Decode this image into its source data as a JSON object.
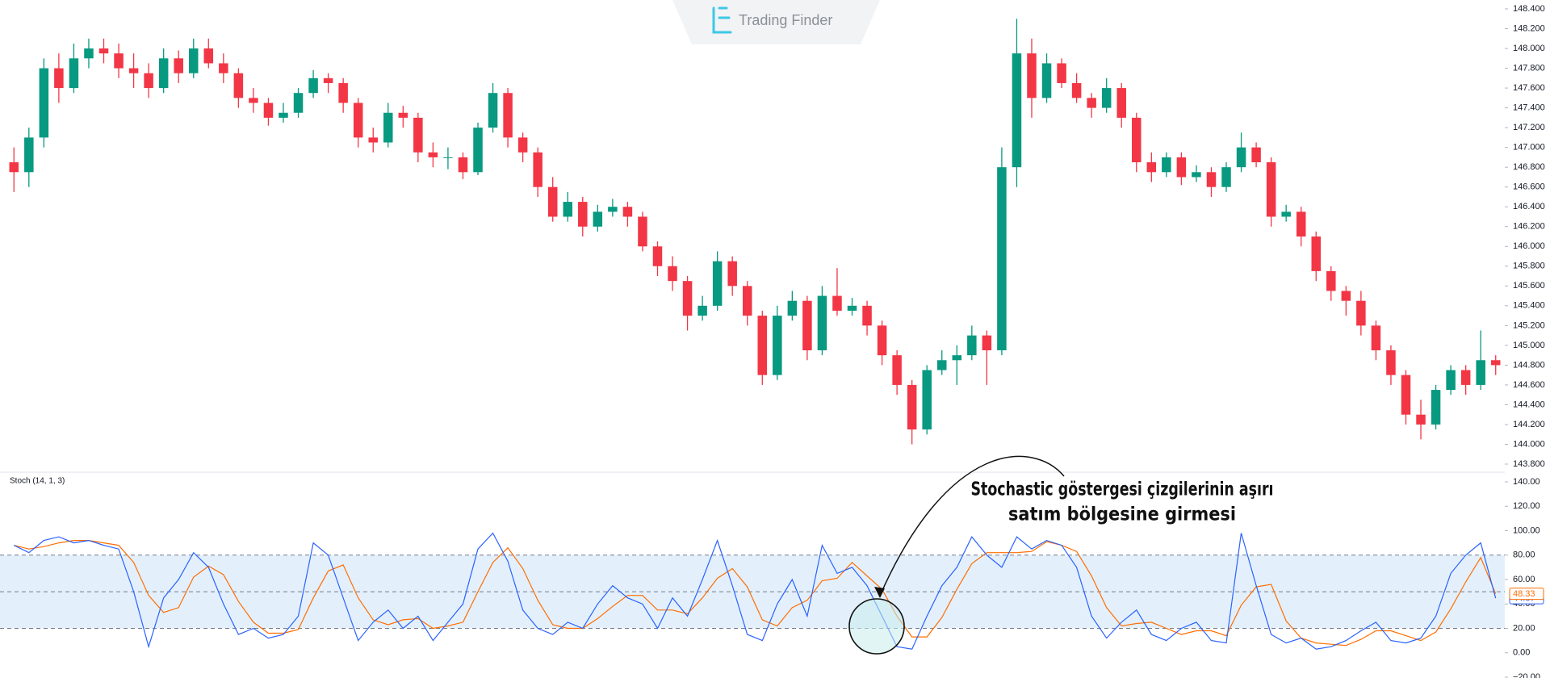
{
  "watermark": "Trading Finder",
  "chart_data": [
    {
      "type": "candlestick",
      "up_color": "#089981",
      "down_color": "#f23645",
      "ylim": [
        143.8,
        148.4
      ],
      "yticks": [
        {
          "value": 148.4,
          "label": "148.400"
        },
        {
          "value": 148.2,
          "label": "148.200"
        },
        {
          "value": 148.0,
          "label": "148.000"
        },
        {
          "value": 147.8,
          "label": "147.800"
        },
        {
          "value": 147.6,
          "label": "147.600"
        },
        {
          "value": 147.4,
          "label": "147.400"
        },
        {
          "value": 147.2,
          "label": "147.200"
        },
        {
          "value": 147.0,
          "label": "147.000"
        },
        {
          "value": 146.8,
          "label": "146.800"
        },
        {
          "value": 146.6,
          "label": "146.600"
        },
        {
          "value": 146.4,
          "label": "146.400"
        },
        {
          "value": 146.2,
          "label": "146.200"
        },
        {
          "value": 146.0,
          "label": "146.000"
        },
        {
          "value": 145.8,
          "label": "145.800"
        },
        {
          "value": 145.6,
          "label": "145.600"
        },
        {
          "value": 145.4,
          "label": "145.400"
        },
        {
          "value": 145.2,
          "label": "145.200"
        },
        {
          "value": 145.0,
          "label": "145.000"
        },
        {
          "value": 144.8,
          "label": "144.800"
        },
        {
          "value": 144.6,
          "label": "144.600"
        },
        {
          "value": 144.4,
          "label": "144.400"
        },
        {
          "value": 144.2,
          "label": "144.200"
        },
        {
          "value": 144.0,
          "label": "144.000"
        },
        {
          "value": 143.8,
          "label": "143.800"
        }
      ],
      "ohlc": [
        [
          146.85,
          147.0,
          146.55,
          146.75
        ],
        [
          146.75,
          147.2,
          146.6,
          147.1
        ],
        [
          147.1,
          147.9,
          147.0,
          147.8
        ],
        [
          147.8,
          147.95,
          147.45,
          147.6
        ],
        [
          147.6,
          148.05,
          147.55,
          147.9
        ],
        [
          147.9,
          148.1,
          147.8,
          148.0
        ],
        [
          148.0,
          148.1,
          147.85,
          147.95
        ],
        [
          147.95,
          148.05,
          147.7,
          147.8
        ],
        [
          147.8,
          147.95,
          147.6,
          147.75
        ],
        [
          147.75,
          147.85,
          147.5,
          147.6
        ],
        [
          147.6,
          148.0,
          147.55,
          147.9
        ],
        [
          147.9,
          147.98,
          147.65,
          147.75
        ],
        [
          147.75,
          148.1,
          147.7,
          148.0
        ],
        [
          148.0,
          148.1,
          147.8,
          147.85
        ],
        [
          147.85,
          147.95,
          147.65,
          147.75
        ],
        [
          147.75,
          147.8,
          147.4,
          147.5
        ],
        [
          147.5,
          147.6,
          147.35,
          147.45
        ],
        [
          147.45,
          147.5,
          147.22,
          147.3
        ],
        [
          147.3,
          147.45,
          147.25,
          147.35
        ],
        [
          147.35,
          147.6,
          147.3,
          147.55
        ],
        [
          147.55,
          147.78,
          147.5,
          147.7
        ],
        [
          147.7,
          147.75,
          147.55,
          147.65
        ],
        [
          147.65,
          147.7,
          147.35,
          147.45
        ],
        [
          147.45,
          147.5,
          147.0,
          147.1
        ],
        [
          147.1,
          147.2,
          146.95,
          147.05
        ],
        [
          147.05,
          147.45,
          147.0,
          147.35
        ],
        [
          147.35,
          147.42,
          147.2,
          147.3
        ],
        [
          147.3,
          147.35,
          146.85,
          146.95
        ],
        [
          146.95,
          147.05,
          146.8,
          146.9
        ],
        [
          146.9,
          147.0,
          146.78,
          146.9
        ],
        [
          146.9,
          146.95,
          146.68,
          146.75
        ],
        [
          146.75,
          147.25,
          146.72,
          147.2
        ],
        [
          147.2,
          147.65,
          147.15,
          147.55
        ],
        [
          147.55,
          147.6,
          147.0,
          147.1
        ],
        [
          147.1,
          147.15,
          146.85,
          146.95
        ],
        [
          146.95,
          147.0,
          146.5,
          146.6
        ],
        [
          146.6,
          146.7,
          146.25,
          146.3
        ],
        [
          146.3,
          146.55,
          146.25,
          146.45
        ],
        [
          146.45,
          146.5,
          146.1,
          146.2
        ],
        [
          146.2,
          146.42,
          146.15,
          146.35
        ],
        [
          146.35,
          146.48,
          146.3,
          146.4
        ],
        [
          146.4,
          146.45,
          146.2,
          146.3
        ],
        [
          146.3,
          146.35,
          145.95,
          146.0
        ],
        [
          146.0,
          146.05,
          145.7,
          145.8
        ],
        [
          145.8,
          145.9,
          145.55,
          145.65
        ],
        [
          145.65,
          145.7,
          145.15,
          145.3
        ],
        [
          145.3,
          145.5,
          145.25,
          145.4
        ],
        [
          145.4,
          145.95,
          145.35,
          145.85
        ],
        [
          145.85,
          145.9,
          145.5,
          145.6
        ],
        [
          145.6,
          145.65,
          145.2,
          145.3
        ],
        [
          145.3,
          145.35,
          144.6,
          144.7
        ],
        [
          144.7,
          145.4,
          144.65,
          145.3
        ],
        [
          145.3,
          145.55,
          145.25,
          145.45
        ],
        [
          145.45,
          145.5,
          144.85,
          144.95
        ],
        [
          144.95,
          145.6,
          144.9,
          145.5
        ],
        [
          145.5,
          145.78,
          145.3,
          145.35
        ],
        [
          145.35,
          145.48,
          145.3,
          145.4
        ],
        [
          145.4,
          145.45,
          145.1,
          145.2
        ],
        [
          145.2,
          145.25,
          144.8,
          144.9
        ],
        [
          144.9,
          144.95,
          144.5,
          144.6
        ],
        [
          144.6,
          144.65,
          144.0,
          144.15
        ],
        [
          144.15,
          144.8,
          144.1,
          144.75
        ],
        [
          144.75,
          144.95,
          144.7,
          144.85
        ],
        [
          144.85,
          145.0,
          144.6,
          144.9
        ],
        [
          144.9,
          145.2,
          144.85,
          145.1
        ],
        [
          145.1,
          145.15,
          144.6,
          144.95
        ],
        [
          144.95,
          147.0,
          144.9,
          146.8
        ],
        [
          146.8,
          148.3,
          146.6,
          147.95
        ],
        [
          147.95,
          148.1,
          147.3,
          147.5
        ],
        [
          147.5,
          147.95,
          147.45,
          147.85
        ],
        [
          147.85,
          147.9,
          147.6,
          147.65
        ],
        [
          147.65,
          147.75,
          147.45,
          147.5
        ],
        [
          147.5,
          147.55,
          147.3,
          147.4
        ],
        [
          147.4,
          147.7,
          147.35,
          147.6
        ],
        [
          147.6,
          147.65,
          147.2,
          147.3
        ],
        [
          147.3,
          147.35,
          146.75,
          146.85
        ],
        [
          146.85,
          146.95,
          146.65,
          146.75
        ],
        [
          146.75,
          146.95,
          146.7,
          146.9
        ],
        [
          146.9,
          146.95,
          146.62,
          146.7
        ],
        [
          146.7,
          146.82,
          146.65,
          146.75
        ],
        [
          146.75,
          146.8,
          146.5,
          146.6
        ],
        [
          146.6,
          146.85,
          146.55,
          146.8
        ],
        [
          146.8,
          147.15,
          146.75,
          147.0
        ],
        [
          147.0,
          147.05,
          146.8,
          146.85
        ],
        [
          146.85,
          146.9,
          146.2,
          146.3
        ],
        [
          146.3,
          146.42,
          146.25,
          146.35
        ],
        [
          146.35,
          146.4,
          146.0,
          146.1
        ],
        [
          146.1,
          146.15,
          145.65,
          145.75
        ],
        [
          145.75,
          145.8,
          145.45,
          145.55
        ],
        [
          145.55,
          145.6,
          145.3,
          145.45
        ],
        [
          145.45,
          145.55,
          145.1,
          145.2
        ],
        [
          145.2,
          145.25,
          144.85,
          144.95
        ],
        [
          144.95,
          145.0,
          144.6,
          144.7
        ],
        [
          144.7,
          144.75,
          144.2,
          144.3
        ],
        [
          144.3,
          144.45,
          144.05,
          144.2
        ],
        [
          144.2,
          144.6,
          144.15,
          144.55
        ],
        [
          144.55,
          144.8,
          144.5,
          144.75
        ],
        [
          144.75,
          144.8,
          144.5,
          144.6
        ],
        [
          144.6,
          145.15,
          144.55,
          144.85
        ],
        [
          144.85,
          144.9,
          144.7,
          144.8
        ]
      ]
    },
    {
      "type": "line",
      "title": "Stoch (14, 1, 3)",
      "ylim": [
        -20,
        140
      ],
      "yticks": [
        {
          "value": 140,
          "label": "140.00"
        },
        {
          "value": 120,
          "label": "120.00"
        },
        {
          "value": 100,
          "label": "100.00"
        },
        {
          "value": 80,
          "label": "80.00"
        },
        {
          "value": 60,
          "label": "60.00"
        },
        {
          "value": 40,
          "label": "40.00"
        },
        {
          "value": 20,
          "label": "20.00"
        },
        {
          "value": 0,
          "label": "0.00"
        },
        {
          "value": -20,
          "label": "−20.00"
        }
      ],
      "levels": [
        80,
        50,
        20
      ],
      "band_color": "#e3f0fc",
      "annotation": [
        "Stochastic göstergesi çizgilerinin aşırı",
        "satım bölgesine girmesi"
      ],
      "series": [
        {
          "name": "%K",
          "color": "#2962ff",
          "values": [
            88,
            82,
            92,
            95,
            90,
            92,
            88,
            85,
            50,
            5,
            45,
            60,
            82,
            70,
            40,
            15,
            20,
            12,
            15,
            30,
            90,
            80,
            45,
            10,
            25,
            35,
            20,
            30,
            10,
            25,
            40,
            85,
            98,
            75,
            35,
            20,
            15,
            25,
            20,
            40,
            55,
            45,
            40,
            20,
            45,
            30,
            60,
            92,
            55,
            15,
            10,
            40,
            60,
            30,
            88,
            65,
            70,
            55,
            30,
            5,
            3,
            30,
            55,
            70,
            95,
            80,
            70,
            95,
            85,
            92,
            88,
            70,
            30,
            12,
            25,
            35,
            15,
            10,
            20,
            25,
            10,
            8,
            98,
            55,
            15,
            8,
            12,
            3,
            5,
            10,
            18,
            25,
            10,
            8,
            12,
            30,
            65,
            80,
            90,
            44.67
          ]
        },
        {
          "name": "%D",
          "color": "#ff6d00",
          "values": [
            88,
            85,
            87,
            90,
            92,
            92,
            90,
            88,
            74,
            47,
            33,
            37,
            62,
            71,
            64,
            42,
            25,
            16,
            16,
            19,
            45,
            67,
            72,
            45,
            27,
            23,
            27,
            28,
            20,
            22,
            25,
            50,
            74,
            86,
            69,
            43,
            23,
            20,
            20,
            28,
            38,
            47,
            47,
            35,
            35,
            32,
            45,
            61,
            69,
            54,
            27,
            22,
            37,
            43,
            59,
            61,
            74,
            63,
            52,
            30,
            13,
            13,
            29,
            52,
            73,
            82,
            82,
            82,
            83,
            91,
            88,
            83,
            63,
            37,
            22,
            24,
            25,
            20,
            15,
            18,
            18,
            14,
            39,
            54,
            56,
            26,
            12,
            8,
            7,
            6,
            11,
            18,
            18,
            14,
            10,
            17,
            36,
            58,
            78,
            48.33
          ]
        }
      ]
    }
  ]
}
